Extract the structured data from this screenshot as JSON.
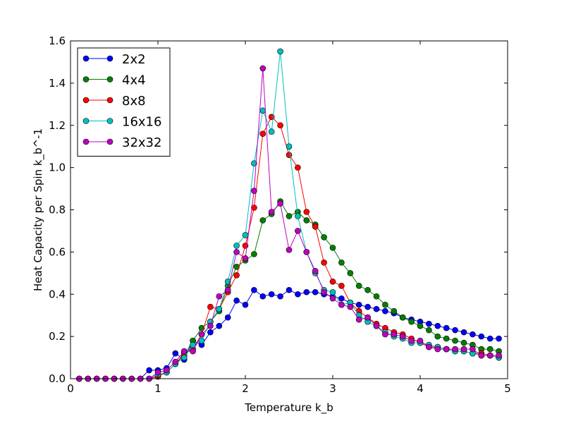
{
  "chart_data": {
    "type": "line",
    "title": "",
    "xlabel": "Temperature k_b",
    "ylabel": "Heat Capacity per Spin k_b^-1",
    "xlim": [
      0,
      5
    ],
    "ylim": [
      0,
      1.6
    ],
    "xticks": [
      0,
      1,
      2,
      3,
      4,
      5
    ],
    "xtick_labels": [
      "0",
      "1",
      "2",
      "3",
      "4",
      "5"
    ],
    "yticks": [
      0,
      0.2,
      0.4,
      0.6,
      0.8,
      1.0,
      1.2,
      1.4,
      1.6
    ],
    "ytick_labels": [
      "0.0",
      "0.2",
      "0.4",
      "0.6",
      "0.8",
      "1.0",
      "1.2",
      "1.4",
      "1.6"
    ],
    "grid": false,
    "legend_position": "top-left",
    "x": [
      0.1,
      0.2,
      0.3,
      0.4,
      0.5,
      0.6,
      0.7,
      0.8,
      0.9,
      1.0,
      1.1,
      1.2,
      1.3,
      1.4,
      1.5,
      1.6,
      1.7,
      1.8,
      1.9,
      2.0,
      2.1,
      2.2,
      2.3,
      2.4,
      2.5,
      2.6,
      2.7,
      2.8,
      2.9,
      3.0,
      3.1,
      3.2,
      3.3,
      3.4,
      3.5,
      3.6,
      3.7,
      3.8,
      3.9,
      4.0,
      4.1,
      4.2,
      4.3,
      4.4,
      4.5,
      4.6,
      4.7,
      4.8,
      4.9
    ],
    "series": [
      {
        "name": "2x2",
        "color": "#0000ff",
        "values": [
          0,
          0,
          0,
          0,
          0,
          0,
          0,
          0,
          0.04,
          0.04,
          0.05,
          0.12,
          0.09,
          0.18,
          0.16,
          0.22,
          0.25,
          0.29,
          0.37,
          0.35,
          0.42,
          0.39,
          0.4,
          0.39,
          0.42,
          0.4,
          0.41,
          0.41,
          0.4,
          0.39,
          0.38,
          0.36,
          0.35,
          0.34,
          0.33,
          0.32,
          0.31,
          0.29,
          0.28,
          0.27,
          0.26,
          0.25,
          0.24,
          0.23,
          0.22,
          0.21,
          0.2,
          0.19,
          0.19
        ]
      },
      {
        "name": "4x4",
        "color": "#008000",
        "values": [
          0,
          0,
          0,
          0,
          0,
          0,
          0,
          0,
          0,
          0.01,
          0.03,
          0.07,
          0.11,
          0.18,
          0.24,
          0.27,
          0.32,
          0.44,
          0.53,
          0.56,
          0.59,
          0.75,
          0.78,
          0.84,
          0.77,
          0.79,
          0.75,
          0.73,
          0.67,
          0.62,
          0.55,
          0.5,
          0.44,
          0.42,
          0.39,
          0.35,
          0.32,
          0.29,
          0.27,
          0.25,
          0.23,
          0.2,
          0.19,
          0.18,
          0.17,
          0.16,
          0.14,
          0.14,
          0.13
        ]
      },
      {
        "name": "8x8",
        "color": "#ff0000",
        "values": [
          0,
          0,
          0,
          0,
          0,
          0,
          0,
          0,
          0,
          0.01,
          0.03,
          0.07,
          0.12,
          0.14,
          0.21,
          0.34,
          0.33,
          0.41,
          0.49,
          0.63,
          0.81,
          1.16,
          1.24,
          1.2,
          1.06,
          1.0,
          0.79,
          0.72,
          0.55,
          0.46,
          0.44,
          0.36,
          0.32,
          0.29,
          0.26,
          0.24,
          0.22,
          0.21,
          0.19,
          0.17,
          0.15,
          0.15,
          0.14,
          0.13,
          0.13,
          0.12,
          0.12,
          0.11,
          0.1
        ]
      },
      {
        "name": "16x16",
        "color": "#00bfbf",
        "values": [
          0,
          0,
          0,
          0,
          0,
          0,
          0,
          0,
          0,
          0.02,
          0.03,
          0.07,
          0.1,
          0.16,
          0.18,
          0.27,
          0.33,
          0.46,
          0.63,
          0.68,
          1.02,
          1.27,
          1.17,
          1.55,
          1.1,
          0.77,
          0.6,
          0.5,
          0.42,
          0.41,
          0.35,
          0.36,
          0.3,
          0.27,
          0.25,
          0.22,
          0.2,
          0.19,
          0.17,
          0.17,
          0.16,
          0.15,
          0.14,
          0.13,
          0.13,
          0.12,
          0.11,
          0.11,
          0.1
        ]
      },
      {
        "name": "32x32",
        "color": "#bf00bf",
        "values": [
          0,
          0,
          0,
          0,
          0,
          0,
          0,
          0,
          0,
          0.03,
          0.04,
          0.08,
          0.13,
          0.13,
          0.21,
          0.25,
          0.39,
          0.42,
          0.6,
          0.57,
          0.89,
          1.47,
          0.79,
          0.83,
          0.61,
          0.7,
          0.6,
          0.51,
          0.41,
          0.38,
          0.35,
          0.34,
          0.28,
          0.29,
          0.25,
          0.21,
          0.21,
          0.2,
          0.18,
          0.18,
          0.15,
          0.14,
          0.14,
          0.14,
          0.14,
          0.14,
          0.11,
          0.11,
          0.11
        ]
      }
    ]
  }
}
